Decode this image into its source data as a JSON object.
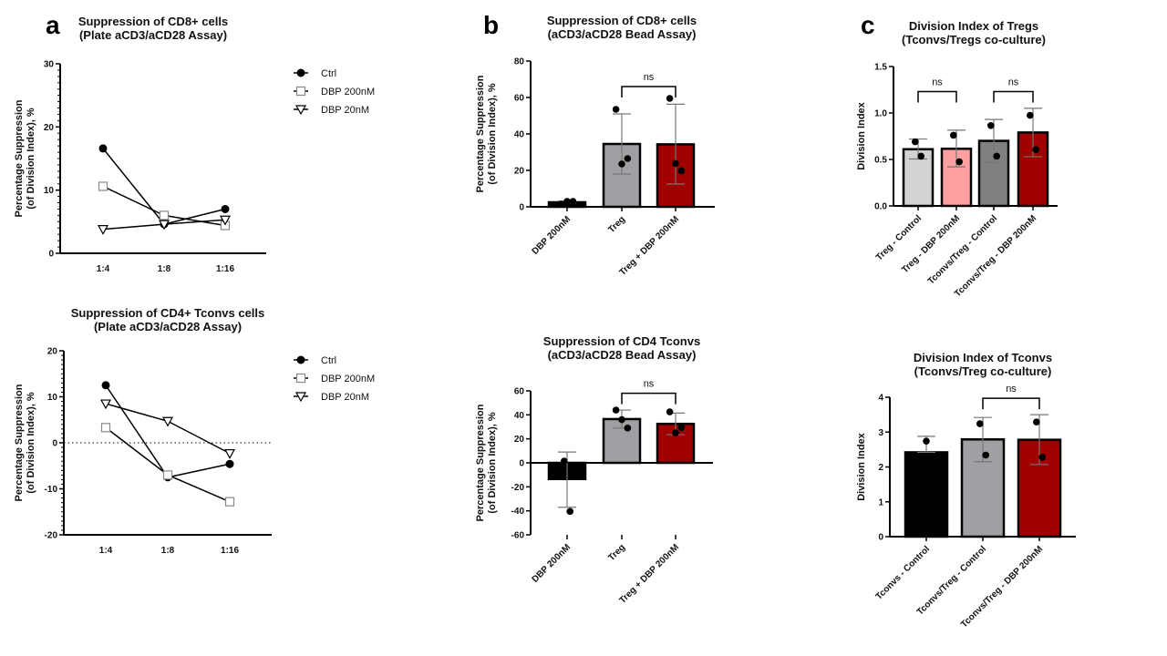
{
  "panel_letters": {
    "a": "a",
    "b": "b",
    "c": "c"
  },
  "chart_data": [
    {
      "id": "a1",
      "type": "line",
      "title": [
        "Suppression of CD8+ cells",
        "(Plate aCD3/aCD28 Assay)"
      ],
      "ylabel": [
        "Percentage Suppression",
        "(of Division Index), %"
      ],
      "xlabel": "",
      "categories": [
        "1:4",
        "1:8",
        "1:16"
      ],
      "ylim": [
        0,
        30
      ],
      "yticks": [
        0,
        10,
        20,
        30
      ],
      "zero_line": false,
      "legend_position": "right",
      "series": [
        {
          "name": "Ctrl",
          "marker": "filled-circle",
          "values": [
            16.6,
            4.6,
            7.0
          ]
        },
        {
          "name": "DBP 200nM",
          "marker": "open-square",
          "values": [
            10.6,
            6.0,
            4.4
          ]
        },
        {
          "name": "DBP 20nM",
          "marker": "open-triangle-down",
          "values": [
            3.8,
            4.6,
            5.3
          ]
        }
      ]
    },
    {
      "id": "a2",
      "type": "line",
      "title": [
        "Suppression of CD4+ Tconvs cells",
        "(Plate aCD3/aCD28 Assay)"
      ],
      "ylabel": [
        "Percentage Suppression",
        "(of Division Index), %"
      ],
      "xlabel": "",
      "categories": [
        "1:4",
        "1:8",
        "1:16"
      ],
      "ylim": [
        -20,
        20
      ],
      "yticks": [
        -20,
        -10,
        0,
        10,
        20
      ],
      "zero_line": true,
      "legend_position": "right",
      "series": [
        {
          "name": "Ctrl",
          "marker": "filled-circle",
          "values": [
            12.5,
            -7.5,
            -4.6
          ]
        },
        {
          "name": "DBP 200nM",
          "marker": "open-square",
          "values": [
            3.3,
            -7.0,
            -12.8
          ]
        },
        {
          "name": "DBP 20nM",
          "marker": "open-triangle-down",
          "values": [
            8.5,
            4.7,
            -2.3
          ]
        }
      ]
    },
    {
      "id": "b1",
      "type": "bar",
      "title": [
        "Suppression of CD8+ cells",
        "(aCD3/aCD28 Bead Assay)"
      ],
      "ylabel": [
        "Percentage Suppression",
        "(of Division Index), %"
      ],
      "xlabel": "",
      "categories": [
        "DBP 200nM",
        "Treg",
        "Treg + DBP 200nM"
      ],
      "ylim": [
        0,
        80
      ],
      "yticks": [
        0,
        20,
        40,
        60,
        80
      ],
      "colors": [
        "#000000",
        "#a0a0a4",
        "#a00000"
      ],
      "values": [
        2.5,
        34.5,
        34.3
      ],
      "error": [
        [
          2.0,
          3.2
        ],
        [
          18.0,
          51.0
        ],
        [
          12.5,
          56.3
        ]
      ],
      "points": [
        [
          1.5,
          3.0,
          3.0
        ],
        [
          53.5,
          23.5,
          26.5
        ],
        [
          59.5,
          23.8,
          19.8
        ]
      ],
      "significance": [
        {
          "from": 1,
          "to": 2,
          "label": "ns",
          "y": 66
        }
      ]
    },
    {
      "id": "b2",
      "type": "bar",
      "title": [
        "Suppression of CD4 Tconvs",
        "(aCD3/aCD28 Bead Assay)"
      ],
      "ylabel": [
        "Percentage Suppression",
        "(of Division Index), %"
      ],
      "xlabel": "",
      "categories": [
        "DBP 200nM",
        "Treg",
        "Treg + DBP 200nM"
      ],
      "ylim": [
        -60,
        60
      ],
      "yticks": [
        -60,
        -40,
        -20,
        0,
        20,
        40,
        60
      ],
      "colors": [
        "#000000",
        "#a0a0a4",
        "#a00000"
      ],
      "values": [
        -13.5,
        36.5,
        32.5
      ],
      "error": [
        [
          -37.0,
          9.0
        ],
        [
          29.0,
          44.0
        ],
        [
          23.5,
          41.5
        ]
      ],
      "points": [
        [
          1.5,
          -40.5
        ],
        [
          44.0,
          36.0,
          29.0
        ],
        [
          42.5,
          25.0,
          29.5
        ]
      ],
      "significance": [
        {
          "from": 1,
          "to": 2,
          "label": "ns",
          "y": 58
        }
      ]
    },
    {
      "id": "c1",
      "type": "bar",
      "title": [
        "Division Index of Tregs",
        "(Tconvs/Tregs co-culture)"
      ],
      "ylabel": [
        "Division Index"
      ],
      "xlabel": "",
      "categories": [
        "Treg - Control",
        "Treg - DBP 200nM",
        "Tconvs/Treg - Control",
        "Tconvs/Treg - DBP 200nM"
      ],
      "ylim": [
        0,
        1.5
      ],
      "yticks": [
        "0.0",
        "0.5",
        "1.0",
        "1.5"
      ],
      "colors": [
        "#d3d3d3",
        "#ff9f9f",
        "#808080",
        "#a00000"
      ],
      "values": [
        0.61,
        0.615,
        0.7,
        0.79
      ],
      "error": [
        [
          0.505,
          0.72
        ],
        [
          0.42,
          0.815
        ],
        [
          0.47,
          0.93
        ],
        [
          0.53,
          1.05
        ]
      ],
      "points": [
        [
          0.69,
          0.535
        ],
        [
          0.76,
          0.475
        ],
        [
          0.865,
          0.535
        ],
        [
          0.975,
          0.605
        ]
      ],
      "significance": [
        {
          "from": 0,
          "to": 1,
          "label": "ns",
          "y": 1.23
        },
        {
          "from": 2,
          "to": 3,
          "label": "ns",
          "y": 1.23
        }
      ]
    },
    {
      "id": "c2",
      "type": "bar",
      "title": [
        "Division Index of Tconvs",
        "(Tconvs/Treg co-culture)"
      ],
      "ylabel": [
        "Division Index"
      ],
      "xlabel": "",
      "categories": [
        "Tconvs - Control",
        "Tconvs/Treg - Control",
        "Tconvs/Treg - DBP 200nM"
      ],
      "ylim": [
        0,
        4
      ],
      "yticks": [
        0,
        1,
        2,
        3,
        4
      ],
      "colors": [
        "#000000",
        "#a0a0a4",
        "#a00000"
      ],
      "values": [
        2.42,
        2.79,
        2.78
      ],
      "error": [
        [
          2.42,
          2.88
        ],
        [
          2.15,
          3.42
        ],
        [
          2.07,
          3.5
        ]
      ],
      "points": [
        [
          2.74
        ],
        [
          3.24,
          2.34
        ],
        [
          3.29,
          2.28
        ]
      ],
      "significance": [
        {
          "from": 1,
          "to": 2,
          "label": "ns",
          "y": 3.97
        }
      ]
    }
  ]
}
